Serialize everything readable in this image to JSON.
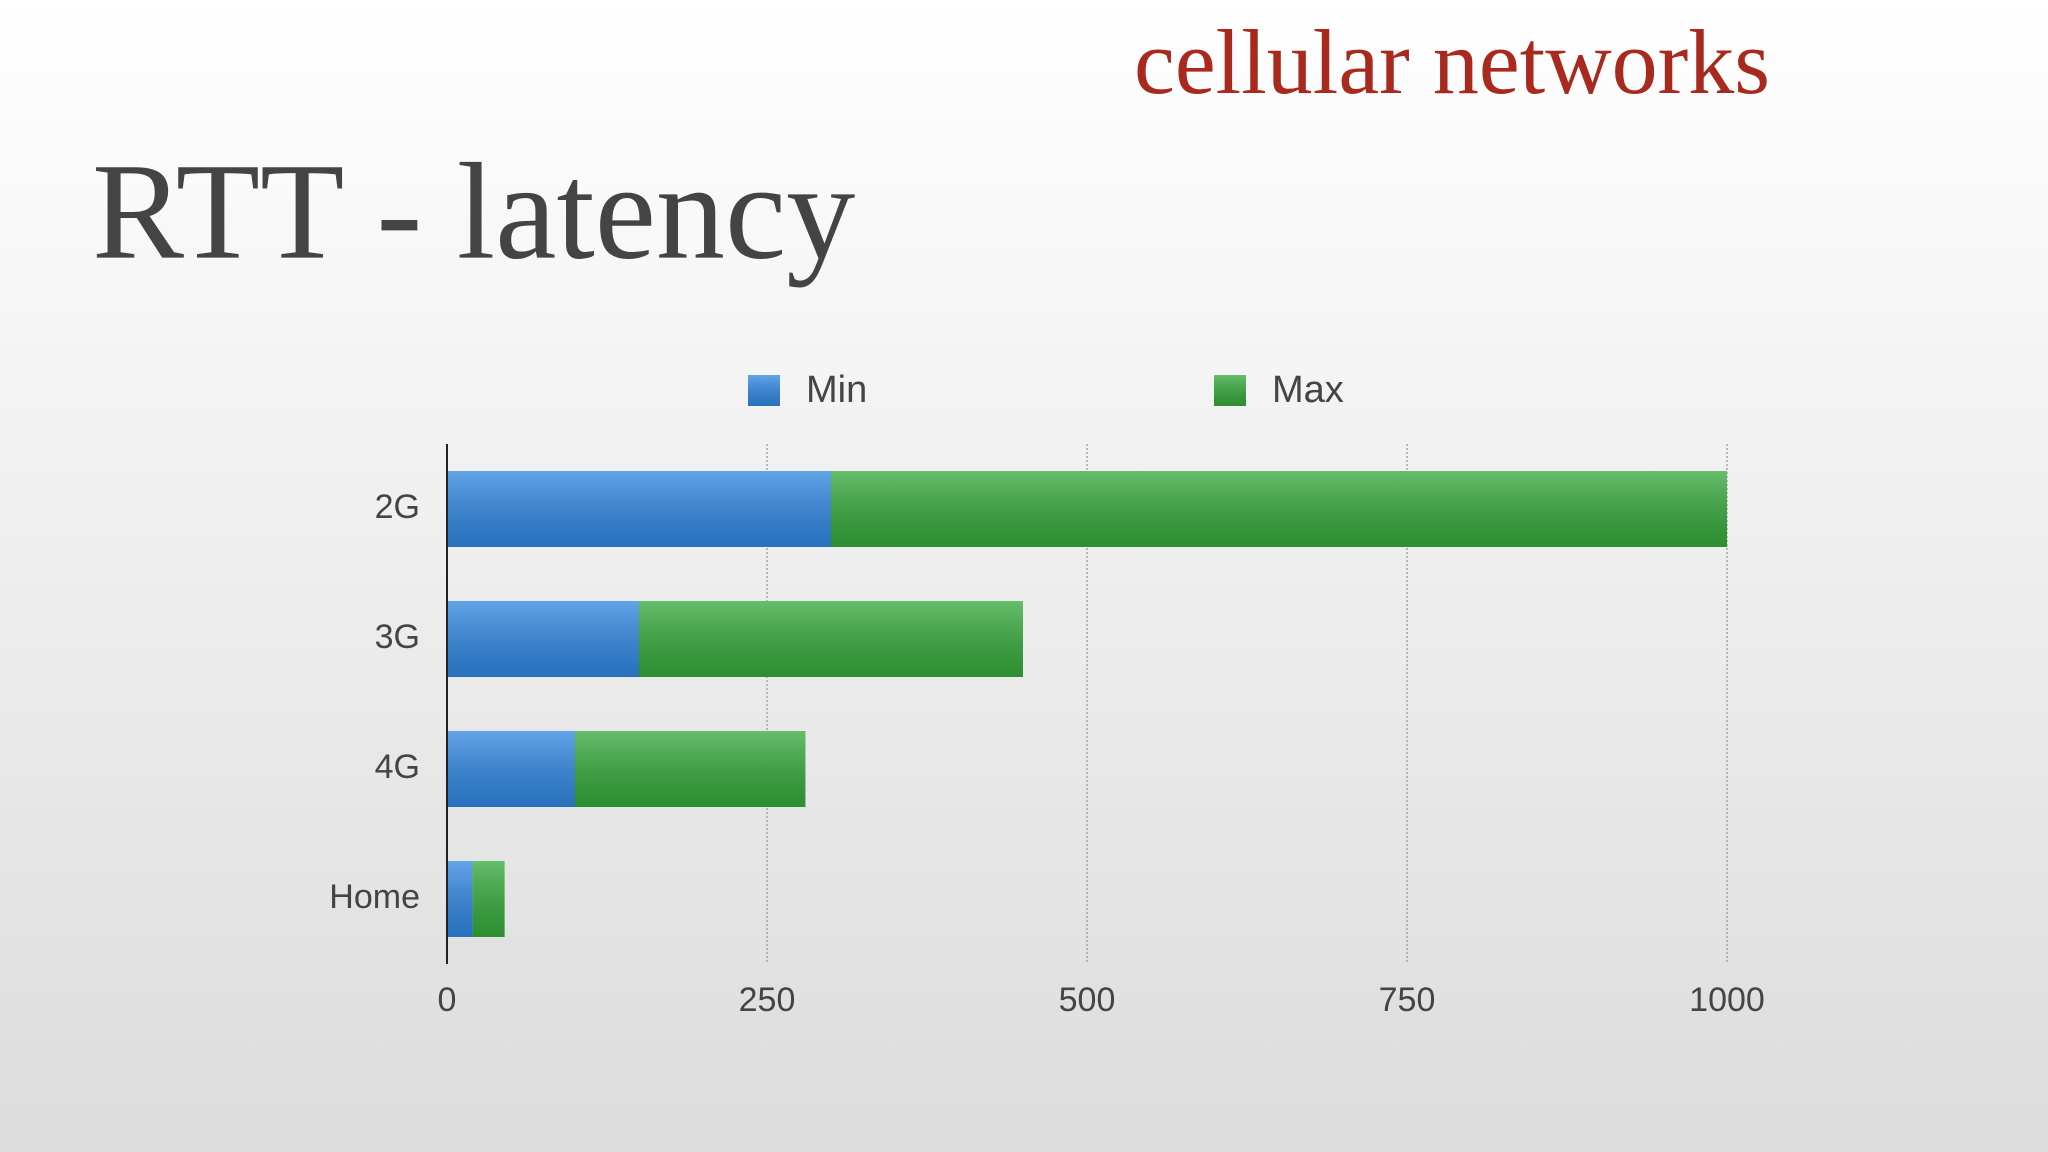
{
  "chart_data": {
    "type": "bar",
    "orientation": "horizontal",
    "stacked": true,
    "title": "RTT - latency",
    "subtitle": "cellular networks",
    "categories": [
      "2G",
      "3G",
      "4G",
      "Home"
    ],
    "series": [
      {
        "name": "Min",
        "color": "#2f86e0",
        "values": [
          300,
          150,
          100,
          20
        ]
      },
      {
        "name": "Max",
        "color": "#34a83a",
        "values": [
          700,
          300,
          180,
          25
        ]
      }
    ],
    "xlim": [
      0,
      1000
    ],
    "xticks": [
      0,
      250,
      500,
      750,
      1000
    ],
    "grid": true,
    "legend": "top"
  }
}
